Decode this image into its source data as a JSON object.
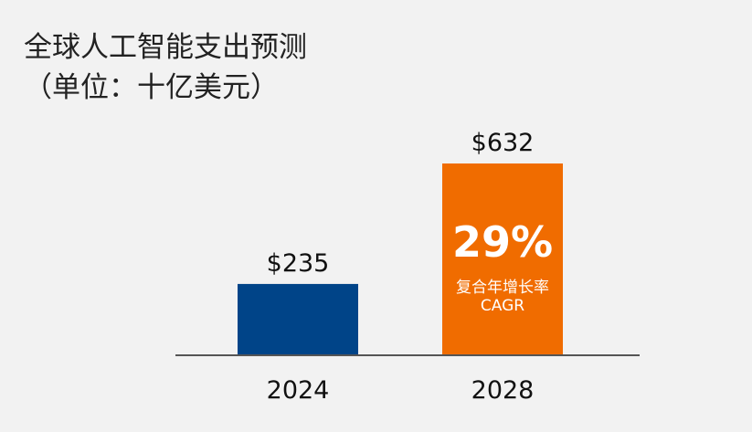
{
  "chart_data": {
    "type": "bar",
    "title": "全球人工智能支出预测",
    "subtitle": "（单位：十亿美元）",
    "categories": [
      "2024",
      "2028"
    ],
    "values": [
      235,
      632
    ],
    "data_labels": [
      "$235",
      "$632"
    ],
    "colors": [
      "#004488",
      "#f06c00"
    ],
    "annotation": {
      "value": "29%",
      "label_cn": "复合年增长率",
      "label_en": "CAGR"
    },
    "xlabel": "",
    "ylabel": "",
    "ylim": [
      0,
      632
    ],
    "grid": false,
    "axis_color": "#555555"
  }
}
